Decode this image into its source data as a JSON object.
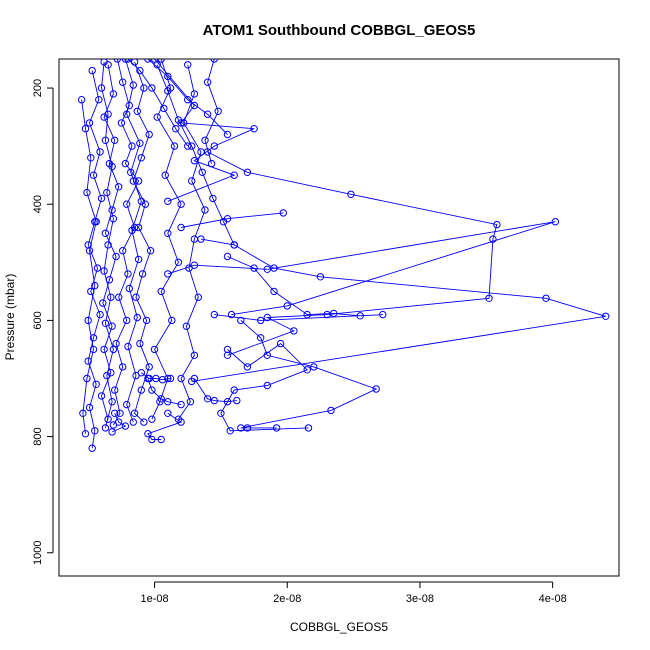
{
  "chart_data": {
    "type": "line",
    "title": "ATOM1 Southbound COBBGL_GEOS5",
    "xlabel": "COBBGL_GEOS5",
    "ylabel": "Pressure (mbar)",
    "xlim": [
      2.8e-09,
      4.5e-08
    ],
    "ylim": [
      1040,
      150
    ],
    "y_inverted": true,
    "x_ticks": [
      {
        "value": 1e-08,
        "label": "1e-08"
      },
      {
        "value": 2e-08,
        "label": "2e-08"
      },
      {
        "value": 3e-08,
        "label": "3e-08"
      },
      {
        "value": 4e-08,
        "label": "4e-08"
      }
    ],
    "y_ticks": [
      {
        "value": 200,
        "label": "200"
      },
      {
        "value": 400,
        "label": "400"
      },
      {
        "value": 600,
        "label": "600"
      },
      {
        "value": 800,
        "label": "800"
      },
      {
        "value": 1000,
        "label": "1000"
      }
    ],
    "series_color": "#0000ff",
    "marker": "open-circle",
    "series": [
      {
        "points": [
          [
            7.2e-09,
            150
          ],
          [
            7.6e-09,
            190
          ],
          [
            8.1e-09,
            230
          ],
          [
            7.5e-09,
            260
          ],
          [
            8.3e-09,
            300
          ],
          [
            7.8e-09,
            330
          ],
          [
            8.8e-09,
            360
          ],
          [
            7.9e-09,
            400
          ],
          [
            8.5e-09,
            440
          ],
          [
            7.6e-09,
            480
          ],
          [
            8e-09,
            520
          ],
          [
            7.3e-09,
            560
          ],
          [
            7.9e-09,
            600
          ],
          [
            7.1e-09,
            640
          ],
          [
            7.6e-09,
            680
          ],
          [
            7e-09,
            720
          ],
          [
            7.4e-09,
            760
          ],
          [
            6.9e-09,
            780
          ]
        ]
      },
      {
        "points": [
          [
            6.5e-09,
            160
          ],
          [
            6.9e-09,
            210
          ],
          [
            6.2e-09,
            250
          ],
          [
            7e-09,
            290
          ],
          [
            6.6e-09,
            330
          ],
          [
            7.3e-09,
            370
          ],
          [
            6.8e-09,
            410
          ],
          [
            6.3e-09,
            450
          ],
          [
            7.1e-09,
            490
          ],
          [
            6.6e-09,
            530
          ],
          [
            6.1e-09,
            570
          ],
          [
            6.8e-09,
            610
          ],
          [
            6.2e-09,
            650
          ],
          [
            6.7e-09,
            690
          ],
          [
            6e-09,
            730
          ],
          [
            6.5e-09,
            770
          ]
        ]
      },
      {
        "points": [
          [
            8.5e-09,
            155
          ],
          [
            9.2e-09,
            200
          ],
          [
            8.7e-09,
            240
          ],
          [
            9.6e-09,
            280
          ],
          [
            9e-09,
            320
          ],
          [
            8.4e-09,
            360
          ],
          [
            9.3e-09,
            400
          ],
          [
            8.8e-09,
            440
          ],
          [
            9.7e-09,
            480
          ],
          [
            9.1e-09,
            520
          ],
          [
            8.6e-09,
            560
          ],
          [
            9.4e-09,
            600
          ],
          [
            8.9e-09,
            640
          ],
          [
            9.6e-09,
            680
          ],
          [
            9e-09,
            720
          ],
          [
            8.5e-09,
            760
          ],
          [
            9.2e-09,
            775
          ]
        ]
      },
      {
        "points": [
          [
            5.3e-09,
            170
          ],
          [
            5.8e-09,
            220
          ],
          [
            5.1e-09,
            260
          ],
          [
            5.9e-09,
            310
          ],
          [
            5.4e-09,
            350
          ],
          [
            6e-09,
            390
          ],
          [
            5.5e-09,
            430
          ],
          [
            5e-09,
            470
          ],
          [
            5.7e-09,
            510
          ],
          [
            5.2e-09,
            550
          ],
          [
            5.9e-09,
            590
          ],
          [
            5.4e-09,
            630
          ],
          [
            5e-09,
            670
          ],
          [
            5.6e-09,
            710
          ],
          [
            5.1e-09,
            750
          ],
          [
            5.5e-09,
            790
          ],
          [
            5.3e-09,
            820
          ]
        ]
      },
      {
        "points": [
          [
            1.05e-08,
            150
          ],
          [
            1.12e-08,
            200
          ],
          [
            1.02e-08,
            250
          ],
          [
            1.15e-08,
            300
          ],
          [
            1.08e-08,
            350
          ],
          [
            1.2e-08,
            400
          ],
          [
            1.1e-08,
            450
          ],
          [
            1.18e-08,
            500
          ],
          [
            1.05e-08,
            550
          ],
          [
            1.13e-08,
            600
          ],
          [
            1e-08,
            650
          ],
          [
            1.1e-08,
            700
          ],
          [
            1.04e-08,
            740
          ],
          [
            9.8e-09,
            770
          ]
        ]
      },
      {
        "points": [
          [
            1.25e-08,
            160
          ],
          [
            1.3e-08,
            210
          ],
          [
            1.22e-08,
            260
          ],
          [
            1.35e-08,
            310
          ],
          [
            1.28e-08,
            360
          ],
          [
            1.38e-08,
            410
          ],
          [
            1.3e-08,
            460
          ],
          [
            1.26e-08,
            510
          ],
          [
            1.33e-08,
            560
          ],
          [
            1.24e-08,
            610
          ],
          [
            1.3e-08,
            660
          ],
          [
            1.2e-08,
            700
          ],
          [
            1.27e-08,
            740
          ],
          [
            1.18e-08,
            770
          ]
        ]
      },
      {
        "points": [
          [
            4.5e-09,
            220
          ],
          [
            4.8e-09,
            270
          ],
          [
            5.2e-09,
            320
          ],
          [
            4.9e-09,
            380
          ],
          [
            5.6e-09,
            430
          ],
          [
            5.1e-09,
            480
          ],
          [
            5.5e-09,
            540
          ],
          [
            5e-09,
            600
          ],
          [
            5.4e-09,
            650
          ],
          [
            4.9e-09,
            700
          ],
          [
            4.6e-09,
            760
          ],
          [
            4.8e-09,
            795
          ]
        ]
      },
      {
        "points": [
          [
            7.8e-09,
            150
          ],
          [
            8.4e-09,
            195
          ],
          [
            7.9e-09,
            245
          ],
          [
            8.9e-09,
            295
          ],
          [
            8.2e-09,
            345
          ],
          [
            9e-09,
            395
          ],
          [
            8.3e-09,
            445
          ],
          [
            8.8e-09,
            495
          ],
          [
            8.1e-09,
            545
          ],
          [
            8.7e-09,
            595
          ],
          [
            8e-09,
            645
          ],
          [
            8.6e-09,
            695
          ],
          [
            7.9e-09,
            745
          ],
          [
            8.4e-09,
            775
          ]
        ]
      },
      {
        "points": [
          [
            1.45e-08,
            150
          ],
          [
            1.4e-08,
            190
          ],
          [
            1.48e-08,
            240
          ],
          [
            1.38e-08,
            290
          ],
          [
            1.43e-08,
            330
          ]
        ]
      },
      {
        "points": [
          [
            6.2e-09,
            155
          ],
          [
            6e-09,
            200
          ],
          [
            6.5e-09,
            245
          ],
          [
            6.3e-09,
            290
          ],
          [
            6.8e-09,
            335
          ],
          [
            6.4e-09,
            380
          ],
          [
            6.9e-09,
            425
          ],
          [
            6.5e-09,
            470
          ],
          [
            6.2e-09,
            515
          ],
          [
            6.7e-09,
            560
          ],
          [
            6.3e-09,
            605
          ],
          [
            6.9e-09,
            650
          ],
          [
            6.4e-09,
            695
          ],
          [
            6.8e-09,
            740
          ],
          [
            6.3e-09,
            785
          ]
        ]
      },
      {
        "points": [
          [
            1e-08,
            150
          ],
          [
            1.3e-08,
            230
          ],
          [
            1.2e-08,
            260
          ],
          [
            1.75e-08,
            270
          ],
          [
            1.45e-08,
            300
          ],
          [
            1.3e-08,
            325
          ],
          [
            1.6e-08,
            350
          ],
          [
            1.1e-08,
            395
          ]
        ]
      },
      {
        "points": [
          [
            9.5e-09,
            150
          ],
          [
            1.1e-08,
            180
          ],
          [
            1.25e-08,
            220
          ],
          [
            1.4e-08,
            245
          ],
          [
            1.55e-08,
            280
          ]
        ]
      },
      {
        "points": [
          [
            1.4e-08,
            310
          ],
          [
            1.7e-08,
            345
          ],
          [
            2.48e-08,
            383
          ],
          [
            3.58e-08,
            435
          ],
          [
            3.55e-08,
            460
          ],
          [
            3.52e-08,
            562
          ],
          [
            2.3e-08,
            590
          ],
          [
            1.85e-08,
            595
          ],
          [
            2.05e-08,
            618
          ],
          [
            1.55e-08,
            660
          ]
        ]
      },
      {
        "points": [
          [
            1.1e-08,
            520
          ],
          [
            1.3e-08,
            505
          ],
          [
            1.85e-08,
            512
          ],
          [
            4.02e-08,
            430
          ],
          [
            2e-08,
            575
          ],
          [
            1.58e-08,
            590
          ]
        ]
      },
      {
        "points": [
          [
            1.2e-08,
            440
          ],
          [
            1.55e-08,
            425
          ],
          [
            1.97e-08,
            415
          ]
        ]
      },
      {
        "points": [
          [
            1.35e-08,
            460
          ],
          [
            1.6e-08,
            470
          ],
          [
            1.9e-08,
            510
          ],
          [
            2.25e-08,
            525
          ],
          [
            3.95e-08,
            562
          ],
          [
            4.4e-08,
            593
          ],
          [
            1.28e-08,
            705
          ]
        ]
      },
      {
        "points": [
          [
            1.55e-08,
            490
          ],
          [
            1.75e-08,
            510
          ],
          [
            1.9e-08,
            550
          ],
          [
            2.15e-08,
            590
          ],
          [
            2.35e-08,
            588
          ],
          [
            2.55e-08,
            592
          ],
          [
            2.72e-08,
            590
          ],
          [
            1.8e-08,
            600
          ],
          [
            1.45e-08,
            590
          ]
        ]
      },
      {
        "points": [
          [
            1.65e-08,
            600
          ],
          [
            1.8e-08,
            630
          ],
          [
            1.85e-08,
            660
          ],
          [
            2.2e-08,
            680
          ],
          [
            2.67e-08,
            718
          ],
          [
            2.33e-08,
            755
          ],
          [
            1.65e-08,
            785
          ],
          [
            1.7e-08,
            785
          ],
          [
            1.92e-08,
            785
          ]
        ]
      },
      {
        "points": [
          [
            1.55e-08,
            650
          ],
          [
            1.7e-08,
            680
          ],
          [
            1.95e-08,
            640
          ],
          [
            2.15e-08,
            685
          ],
          [
            1.85e-08,
            712
          ],
          [
            1.6e-08,
            720
          ],
          [
            1.5e-08,
            760
          ],
          [
            1.57e-08,
            790
          ],
          [
            2.16e-08,
            785
          ]
        ]
      },
      {
        "points": [
          [
            1.3e-08,
            700
          ],
          [
            1.4e-08,
            735
          ],
          [
            1.45e-08,
            738
          ],
          [
            1.55e-08,
            740
          ],
          [
            1.62e-08,
            738
          ]
        ]
      },
      {
        "points": [
          [
            9.5e-09,
            700
          ],
          [
            9.8e-09,
            720
          ],
          [
            1.05e-08,
            735
          ],
          [
            1.1e-08,
            740
          ],
          [
            1.2e-08,
            745
          ]
        ]
      },
      {
        "points": [
          [
            1.1e-08,
            760
          ],
          [
            1.2e-08,
            775
          ],
          [
            9.5e-09,
            795
          ],
          [
            9.8e-09,
            805
          ],
          [
            1.05e-08,
            805
          ]
        ]
      },
      {
        "points": [
          [
            7e-09,
            760
          ],
          [
            7.3e-09,
            775
          ],
          [
            7.8e-09,
            782
          ],
          [
            6.8e-09,
            792
          ]
        ]
      },
      {
        "points": [
          [
            9e-09,
            690
          ],
          [
            9.6e-09,
            700
          ],
          [
            1.01e-08,
            700
          ],
          [
            1.06e-08,
            702
          ],
          [
            1.12e-08,
            700
          ]
        ]
      },
      {
        "points": [
          [
            1.02e-08,
            160
          ],
          [
            1.1e-08,
            205
          ],
          [
            1.18e-08,
            255
          ],
          [
            1.28e-08,
            300
          ],
          [
            1.36e-08,
            345
          ],
          [
            1.44e-08,
            390
          ],
          [
            1.52e-08,
            430
          ],
          [
            1.6e-08,
            470
          ]
        ]
      },
      {
        "points": [
          [
            8e-09,
            150
          ],
          [
            8.9e-09,
            170
          ],
          [
            9.8e-09,
            200
          ],
          [
            1.07e-08,
            235
          ],
          [
            1.16e-08,
            270
          ],
          [
            1.25e-08,
            300
          ]
        ]
      }
    ]
  }
}
